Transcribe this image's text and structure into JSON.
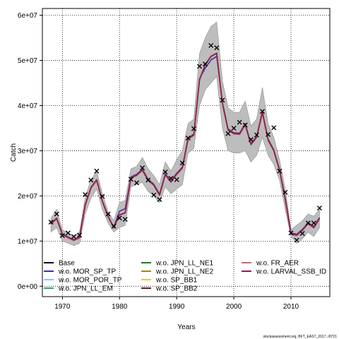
{
  "chart_data": {
    "type": "line",
    "xlabel": "Years",
    "ylabel": "Catch",
    "footer_note": "stockassessment.org, BFT_EAST_2017, r8721",
    "xlim": [
      1966.5,
      2016.8
    ],
    "ylim": [
      -2300000,
      61500000
    ],
    "x_ticks": [
      1970,
      1980,
      1990,
      2000,
      2010
    ],
    "x_tick_labels": [
      "1970",
      "1980",
      "1990",
      "2000",
      "2010"
    ],
    "y_ticks": [
      0,
      10000000,
      20000000,
      30000000,
      40000000,
      50000000,
      60000000
    ],
    "y_tick_labels": [
      "0e+00",
      "1e+07",
      "2e+07",
      "3e+07",
      "4e+07",
      "5e+07",
      "6e+07"
    ],
    "grid": true,
    "legend_position": "bottom",
    "years": [
      1968,
      1969,
      1970,
      1971,
      1972,
      1973,
      1974,
      1975,
      1976,
      1977,
      1978,
      1979,
      1980,
      1981,
      1982,
      1983,
      1984,
      1985,
      1986,
      1987,
      1988,
      1989,
      1990,
      1991,
      1992,
      1993,
      1994,
      1995,
      1996,
      1997,
      1998,
      1999,
      2000,
      2001,
      2002,
      2003,
      2004,
      2005,
      2006,
      2007,
      2008,
      2009,
      2010,
      2011,
      2012,
      2013,
      2014,
      2015
    ],
    "ci_upper": [
      15000000,
      17000000,
      12500000,
      11800000,
      11200000,
      12000000,
      19800000,
      23500000,
      25500000,
      20500000,
      16500000,
      14500000,
      18500000,
      19000000,
      26000000,
      26500000,
      28500000,
      26000000,
      24500000,
      22500000,
      27500000,
      25500000,
      28000000,
      30000000,
      36000000,
      37000000,
      51500000,
      55000000,
      57500000,
      58500000,
      45500000,
      39500000,
      38500000,
      38500000,
      41000000,
      35500000,
      37000000,
      44000000,
      36000000,
      33000000,
      28000000,
      21500000,
      12500000,
      13500000,
      14500000,
      16000000,
      15500000,
      17000000
    ],
    "ci_lower": [
      12000000,
      13000000,
      10000000,
      9500000,
      9000000,
      9500000,
      16000000,
      19500000,
      21500000,
      17000000,
      14000000,
      12000000,
      13000000,
      13500000,
      22000000,
      22500000,
      23000000,
      21000000,
      20000000,
      18500000,
      22000000,
      20500000,
      21500000,
      22500000,
      29500000,
      30500000,
      40000000,
      43500000,
      45000000,
      46500000,
      35000000,
      30000000,
      29500000,
      29500000,
      30000000,
      27500000,
      29000000,
      33000000,
      29000000,
      27000000,
      23500000,
      17000000,
      11000000,
      9500000,
      10500000,
      12000000,
      11000000,
      13000000
    ],
    "series": [
      {
        "name": "Base",
        "color": "#000000",
        "values": [
          13800000,
          15000000,
          11500000,
          10800000,
          10200000,
          10800000,
          18000000,
          21800000,
          23500000,
          18800000,
          15400000,
          13000000,
          15800000,
          16300000,
          24000000,
          24600000,
          25700000,
          23500000,
          22400000,
          20200000,
          24700000,
          23100000,
          24800000,
          26200000,
          32600000,
          33500000,
          45700000,
          49100000,
          50900000,
          51600000,
          40500000,
          34600000,
          33800000,
          33700000,
          35800000,
          31400000,
          33000000,
          38500000,
          32400000,
          30000000,
          25700000,
          19300000,
          11600000,
          11300000,
          12400000,
          13900000,
          13000000,
          15000000
        ]
      },
      {
        "name": "w.o. MOR_SP_TP",
        "color": "#3f2fa8",
        "values": [
          13900000,
          15100000,
          11600000,
          10900000,
          10300000,
          10900000,
          18100000,
          21900000,
          23600000,
          18900000,
          15500000,
          13100000,
          16600000,
          17200000,
          24200000,
          24800000,
          25900000,
          23700000,
          22600000,
          20400000,
          24900000,
          23300000,
          25000000,
          26400000,
          32800000,
          33700000,
          45900000,
          48300000,
          50100000,
          50900000,
          40700000,
          34800000,
          34000000,
          33900000,
          36000000,
          31600000,
          33200000,
          38700000,
          32600000,
          30200000,
          25900000,
          19500000,
          11800000,
          11500000,
          12600000,
          14100000,
          13200000,
          15200000
        ]
      },
      {
        "name": "w.o. MOR_POR_TP",
        "color": "#7ec8f0",
        "values": [
          13800000,
          15000000,
          11500000,
          10800000,
          10200000,
          10800000,
          18000000,
          21800000,
          23500000,
          18800000,
          15400000,
          13000000,
          15800000,
          16300000,
          24000000,
          24600000,
          25700000,
          23500000,
          22400000,
          20200000,
          24700000,
          23100000,
          24800000,
          26200000,
          32600000,
          33500000,
          45700000,
          49100000,
          50900000,
          51600000,
          40500000,
          34600000,
          33800000,
          33700000,
          35800000,
          31400000,
          33000000,
          38500000,
          32400000,
          30000000,
          25700000,
          19300000,
          11600000,
          11300000,
          12400000,
          13900000,
          13000000,
          15000000
        ]
      },
      {
        "name": "w.o. JPN_LL_EM",
        "color": "#2aa58a",
        "values": [
          13800000,
          15000000,
          11500000,
          10800000,
          10200000,
          10800000,
          18000000,
          21800000,
          23500000,
          18800000,
          15400000,
          13000000,
          15800000,
          16300000,
          24000000,
          24600000,
          25700000,
          23500000,
          22400000,
          20200000,
          24700000,
          23100000,
          24800000,
          26200000,
          32600000,
          33500000,
          45700000,
          49100000,
          50900000,
          51600000,
          40500000,
          34600000,
          33800000,
          33700000,
          35800000,
          31400000,
          33000000,
          38500000,
          32400000,
          30000000,
          25700000,
          19300000,
          11600000,
          11300000,
          12400000,
          13900000,
          13000000,
          15000000
        ]
      },
      {
        "name": "w.o. JPN_LL_NE1",
        "color": "#1f7a1f",
        "values": [
          13800000,
          15000000,
          11500000,
          10800000,
          10200000,
          10800000,
          18000000,
          21800000,
          23500000,
          18800000,
          15400000,
          13000000,
          15800000,
          16300000,
          24000000,
          24600000,
          25700000,
          23500000,
          22400000,
          20200000,
          24700000,
          23100000,
          24800000,
          26200000,
          32600000,
          33500000,
          45700000,
          49100000,
          50900000,
          51600000,
          40500000,
          34600000,
          33800000,
          33700000,
          35800000,
          31400000,
          33000000,
          38500000,
          32400000,
          30000000,
          25700000,
          19300000,
          11600000,
          11300000,
          12400000,
          13900000,
          13000000,
          15000000
        ]
      },
      {
        "name": "w.o. JPN_LL_NE2",
        "color": "#9a8a1a",
        "values": [
          13800000,
          15000000,
          11500000,
          10800000,
          10200000,
          10800000,
          18000000,
          21800000,
          23500000,
          18800000,
          15400000,
          13000000,
          15800000,
          16300000,
          24000000,
          24600000,
          25700000,
          23500000,
          22400000,
          20200000,
          24700000,
          23100000,
          24800000,
          26200000,
          32600000,
          33500000,
          45700000,
          49100000,
          50900000,
          51600000,
          40500000,
          34600000,
          33800000,
          33700000,
          35800000,
          31400000,
          33000000,
          38500000,
          32400000,
          30000000,
          25700000,
          19300000,
          11600000,
          11300000,
          12400000,
          13900000,
          13000000,
          15000000
        ]
      },
      {
        "name": "w.o. SP_BB1",
        "color": "#e8c440",
        "values": [
          13800000,
          15000000,
          11500000,
          10800000,
          10200000,
          10800000,
          18000000,
          21800000,
          23500000,
          18800000,
          15400000,
          13000000,
          15800000,
          16300000,
          24000000,
          24600000,
          25700000,
          23500000,
          22400000,
          20200000,
          24700000,
          23100000,
          24800000,
          26200000,
          32600000,
          33500000,
          45700000,
          49100000,
          50900000,
          51600000,
          40500000,
          34600000,
          33800000,
          33700000,
          35800000,
          31400000,
          33000000,
          38500000,
          32400000,
          30000000,
          25700000,
          19300000,
          11600000,
          11300000,
          12400000,
          13900000,
          13000000,
          15000000
        ]
      },
      {
        "name": "w.o. SP_BB2",
        "color": "#6b1a0a",
        "values": [
          13800000,
          15000000,
          11500000,
          10800000,
          10200000,
          10800000,
          18000000,
          21800000,
          23500000,
          18800000,
          15400000,
          13000000,
          15800000,
          16300000,
          24000000,
          24600000,
          25700000,
          23500000,
          22400000,
          20200000,
          24700000,
          23100000,
          24800000,
          26200000,
          32600000,
          33500000,
          45700000,
          49100000,
          50900000,
          51600000,
          40500000,
          34600000,
          33800000,
          33700000,
          35800000,
          31400000,
          33000000,
          38500000,
          32400000,
          30000000,
          25700000,
          19300000,
          11600000,
          11300000,
          12400000,
          13900000,
          13000000,
          15000000
        ]
      },
      {
        "name": "w.o. FR_AER",
        "color": "#e0606a",
        "values": [
          13700000,
          14900000,
          11400000,
          10700000,
          10100000,
          10700000,
          17900000,
          21700000,
          23400000,
          18700000,
          15300000,
          12900000,
          15700000,
          16200000,
          23900000,
          24500000,
          25600000,
          23400000,
          22300000,
          20100000,
          24600000,
          23000000,
          24700000,
          26100000,
          32500000,
          33400000,
          45600000,
          49000000,
          50800000,
          51500000,
          40400000,
          34500000,
          33700000,
          33600000,
          35700000,
          31300000,
          32900000,
          38400000,
          32300000,
          29900000,
          25600000,
          19200000,
          11500000,
          11200000,
          12300000,
          13800000,
          12900000,
          14900000
        ]
      },
      {
        "name": "w.o. LARVAL_SSB_ID",
        "color": "#8e1f52",
        "values": [
          13800000,
          15000000,
          11500000,
          10800000,
          10200000,
          10800000,
          18000000,
          21800000,
          23500000,
          18800000,
          15400000,
          13000000,
          15800000,
          16300000,
          24000000,
          24600000,
          25700000,
          23500000,
          22400000,
          20200000,
          24700000,
          23100000,
          24800000,
          26200000,
          32600000,
          33500000,
          45700000,
          49100000,
          50900000,
          51600000,
          40500000,
          34600000,
          33800000,
          33700000,
          35800000,
          31400000,
          33000000,
          38500000,
          32400000,
          30000000,
          25700000,
          19300000,
          11600000,
          11300000,
          12400000,
          13900000,
          13000000,
          15000000
        ]
      }
    ],
    "observed": {
      "marker": "x",
      "values": [
        14200000,
        16000000,
        11200000,
        11800000,
        11000000,
        11300000,
        20300000,
        23500000,
        25500000,
        19900000,
        16000000,
        13300000,
        15100000,
        14800000,
        23700000,
        22900000,
        26200000,
        23500000,
        20200000,
        19200000,
        25300000,
        23900000,
        23600000,
        27300000,
        32800000,
        34900000,
        48700000,
        49200000,
        53300000,
        52800000,
        41200000,
        33800000,
        35000000,
        36300000,
        35700000,
        32500000,
        33500000,
        38700000,
        33600000,
        35100000,
        25500000,
        20800000,
        11800000,
        10200000,
        11700000,
        14000000,
        14000000,
        17300000
      ]
    }
  }
}
